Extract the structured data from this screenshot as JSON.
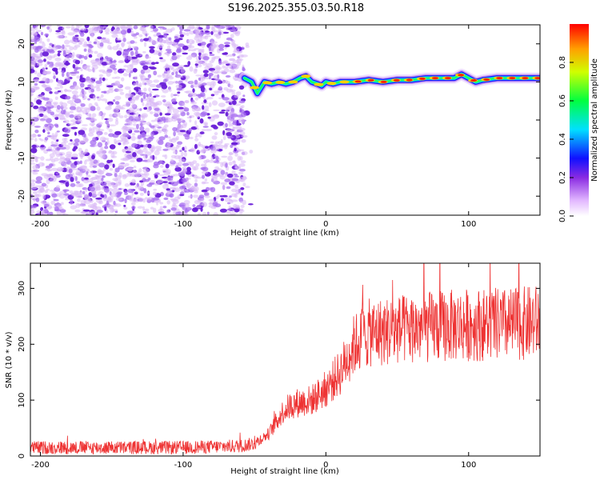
{
  "title": "S196.2025.355.03.50.R18",
  "colors": {
    "snr_line": "#ee3333",
    "noise": "#7a2be0",
    "frame": "#000000"
  },
  "chart_data": [
    {
      "type": "heatmap",
      "name": "spectrogram",
      "title": "S196.2025.355.03.50.R18",
      "xlabel": "Height of straight line (km)",
      "ylabel": "Frequency (Hz)",
      "xlim": [
        -207,
        150
      ],
      "ylim": [
        -25,
        25
      ],
      "xticks": [
        -200,
        -100,
        0,
        100
      ],
      "yticks": [
        -20,
        -10,
        0,
        10,
        20
      ],
      "colorbar": {
        "label": "Normalized spectral amplitude",
        "range": [
          0,
          1
        ],
        "ticks": [
          0.0,
          0.2,
          0.4,
          0.6,
          0.8
        ]
      },
      "noise_region_x": [
        -207,
        -57
      ],
      "signal_ridge": {
        "x": [
          -57,
          -52,
          -48,
          -43,
          -38,
          -33,
          -28,
          -23,
          -18,
          -14,
          -10,
          -6,
          -3,
          0,
          5,
          10,
          15,
          20,
          30,
          40,
          50,
          60,
          70,
          80,
          90,
          95,
          100,
          105,
          110,
          120,
          130,
          140,
          150
        ],
        "frequency": [
          11,
          10,
          7,
          10,
          9.5,
          10,
          9.5,
          10,
          11,
          11.5,
          10,
          9.5,
          9,
          10,
          9.5,
          10,
          10,
          10,
          10.5,
          10,
          10.5,
          10.5,
          11,
          11,
          11,
          12,
          11,
          10,
          10.5,
          11,
          11,
          11,
          11
        ]
      }
    },
    {
      "type": "line",
      "name": "snr",
      "xlabel": "Height of straight line (km)",
      "ylabel": "SNR (10 * v/v)",
      "xlim": [
        -207,
        150
      ],
      "ylim": [
        0,
        345
      ],
      "xticks": [
        -200,
        -100,
        0,
        100
      ],
      "yticks": [
        0,
        100,
        200,
        300
      ],
      "trend": {
        "x": [
          -207,
          -150,
          -100,
          -60,
          -50,
          -40,
          -35,
          -30,
          -25,
          -20,
          -10,
          0,
          10,
          20,
          30,
          50,
          70,
          100,
          130,
          150
        ],
        "y": [
          15,
          15,
          15,
          18,
          22,
          40,
          60,
          80,
          90,
          95,
          100,
          120,
          150,
          200,
          220,
          225,
          230,
          235,
          235,
          240
        ]
      }
    }
  ]
}
